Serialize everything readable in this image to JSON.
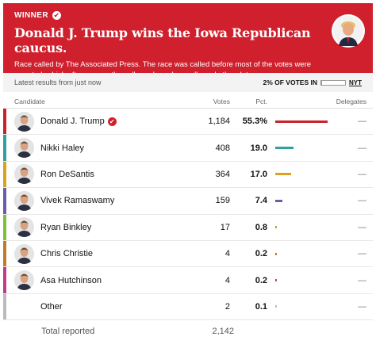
{
  "banner": {
    "winner_label": "WINNER",
    "headline": "Donald J. Trump wins the Iowa Republican caucus.",
    "subtext": "Race called by The Associated Press. The race was called before most of the votes were reported, which often means the call was based on polls and other data.",
    "color": "#d0202e"
  },
  "results": {
    "latest": "Latest results from just now",
    "pct_reported": "2% OF VOTES IN",
    "pct_reported_value": 0.02,
    "source": "NYT"
  },
  "table": {
    "headers": {
      "candidate": "Candidate",
      "votes": "Votes",
      "pct": "Pct.",
      "delegates": "Delegates"
    },
    "rows": [
      {
        "name": "Donald J. Trump",
        "votes": "1,184",
        "pct": "55.3%",
        "pct_value": 55.3,
        "delegates": "—",
        "color": "#c8232c",
        "winner": true
      },
      {
        "name": "Nikki Haley",
        "votes": "408",
        "pct": "19.0",
        "pct_value": 19.0,
        "delegates": "—",
        "color": "#32a0a3"
      },
      {
        "name": "Ron DeSantis",
        "votes": "364",
        "pct": "17.0",
        "pct_value": 17.0,
        "delegates": "—",
        "color": "#d9a31a"
      },
      {
        "name": "Vivek Ramaswamy",
        "votes": "159",
        "pct": "7.4",
        "pct_value": 7.4,
        "delegates": "—",
        "color": "#6b5ba8"
      },
      {
        "name": "Ryan Binkley",
        "votes": "17",
        "pct": "0.8",
        "pct_value": 0.8,
        "delegates": "—",
        "color": "#7cc03a"
      },
      {
        "name": "Chris Christie",
        "votes": "4",
        "pct": "0.2",
        "pct_value": 0.2,
        "delegates": "—",
        "color": "#c07a2a"
      },
      {
        "name": "Asa Hutchinson",
        "votes": "4",
        "pct": "0.2",
        "pct_value": 0.2,
        "delegates": "—",
        "color": "#c03b8c"
      },
      {
        "name": "Other",
        "votes": "2",
        "pct": "0.1",
        "pct_value": 0.1,
        "delegates": "—",
        "color": "#bbbbbb"
      }
    ],
    "total_label": "Total reported",
    "total_votes": "2,142"
  }
}
